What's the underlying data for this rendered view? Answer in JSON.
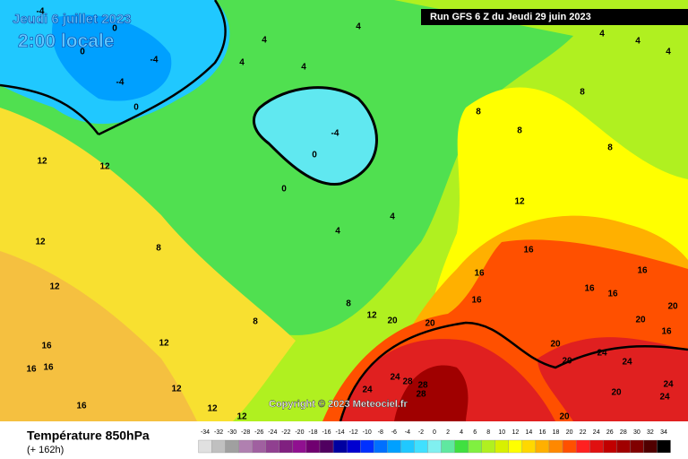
{
  "header": {
    "valid_date": "Jeudi 6 juillet 2023",
    "local_time": "2:00 locale",
    "run": "Run GFS 6 Z du Jeudi 29 juin 2023"
  },
  "copyright": "Copyright © 2023 Meteociel.fr",
  "footer": {
    "title": "Température 850hPa",
    "lead_time": "(+ 162h)"
  },
  "legend": {
    "levels": [
      -34,
      -32,
      -30,
      -28,
      -26,
      -24,
      -22,
      -20,
      -18,
      -16,
      -14,
      -12,
      -10,
      -8,
      -6,
      -4,
      -2,
      0,
      2,
      4,
      6,
      8,
      10,
      12,
      14,
      16,
      18,
      20,
      22,
      24,
      26,
      28,
      30,
      32,
      34
    ],
    "colors": [
      "#e0e0e0",
      "#c0c0c0",
      "#a0a0a0",
      "#b080b0",
      "#a060a0",
      "#904090",
      "#802080",
      "#901090",
      "#700070",
      "#500060",
      "#0000a0",
      "#0000d0",
      "#0030ff",
      "#0070ff",
      "#00a0ff",
      "#20c8ff",
      "#40e0ff",
      "#80f0f0",
      "#60e8a0",
      "#40e040",
      "#80f040",
      "#b0f020",
      "#d8f000",
      "#ffff00",
      "#ffd800",
      "#ffb000",
      "#ff8800",
      "#ff5000",
      "#ff2020",
      "#e01010",
      "#c00000",
      "#a00000",
      "#800000",
      "#500000",
      "#000000"
    ]
  },
  "map": {
    "contour_labels": [
      -4,
      0,
      0,
      -4,
      -4,
      4,
      4,
      4,
      4,
      4,
      4,
      4,
      -4,
      0,
      0,
      0,
      12,
      12,
      8,
      8,
      8,
      8,
      4,
      4,
      8,
      8,
      8,
      12,
      12,
      12,
      12,
      12,
      12,
      12,
      12,
      16,
      16,
      16,
      16,
      16,
      16,
      16,
      16,
      16,
      16,
      16,
      20,
      20,
      20,
      20,
      20,
      20,
      20,
      20,
      24,
      24,
      24,
      24,
      24,
      24,
      28,
      28,
      28
    ]
  }
}
